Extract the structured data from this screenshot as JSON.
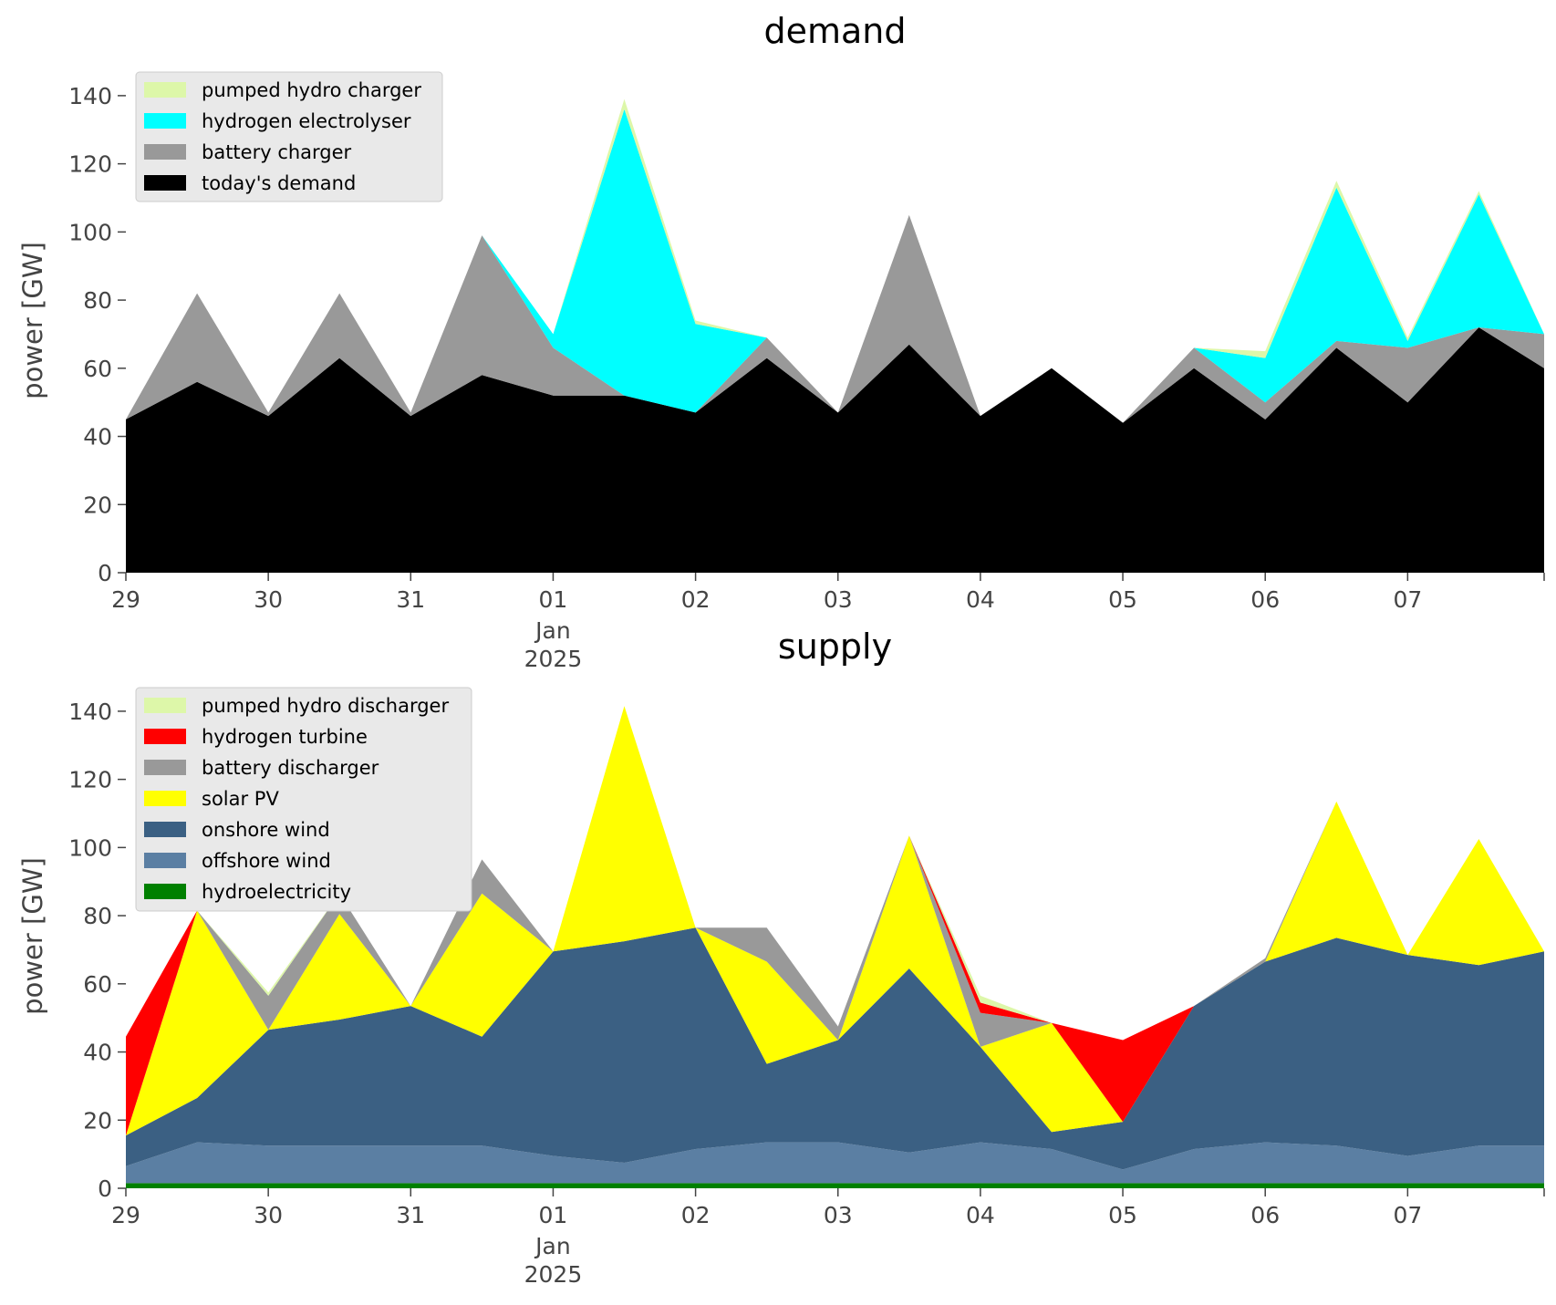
{
  "chart_data": [
    {
      "type": "area",
      "stacked": true,
      "title": "demand",
      "ylabel": "power [GW]",
      "xlabel": "",
      "ylim": [
        0,
        148
      ],
      "yticks": [
        0,
        20,
        40,
        60,
        80,
        100,
        120,
        140
      ],
      "xlim": [
        "2024-12-29",
        "2025-01-07T23:00"
      ],
      "xticks": [
        {
          "date": "2024-12-29",
          "label": "29"
        },
        {
          "date": "2024-12-30",
          "label": "30"
        },
        {
          "date": "2024-12-31",
          "label": "31"
        },
        {
          "date": "2025-01-01",
          "label": "01",
          "sub": [
            "Jan",
            "2025"
          ]
        },
        {
          "date": "2025-01-02",
          "label": "02"
        },
        {
          "date": "2025-01-03",
          "label": "03"
        },
        {
          "date": "2025-01-04",
          "label": "04"
        },
        {
          "date": "2025-01-05",
          "label": "05"
        },
        {
          "date": "2025-01-06",
          "label": "06"
        },
        {
          "date": "2025-01-07",
          "label": "07"
        }
      ],
      "legend_position": "upper-left",
      "x": [
        "2024-12-29",
        "2024-12-29T12:00",
        "2024-12-30",
        "2024-12-30T12:00",
        "2024-12-31",
        "2024-12-31T12:00",
        "2025-01-01",
        "2025-01-01T12:00",
        "2025-01-02",
        "2025-01-02T12:00",
        "2025-01-03",
        "2025-01-03T12:00",
        "2025-01-04",
        "2025-01-04T12:00",
        "2025-01-05",
        "2025-01-05T12:00",
        "2025-01-06",
        "2025-01-06T12:00",
        "2025-01-07",
        "2025-01-07T12:00",
        "2025-01-07T23:00"
      ],
      "series": [
        {
          "name": "today's demand",
          "color": "#000000",
          "values": [
            45,
            56,
            46,
            63,
            46,
            58,
            52,
            52,
            47,
            63,
            47,
            67,
            46,
            60,
            44,
            60,
            45,
            66,
            50,
            72,
            60
          ]
        },
        {
          "name": "battery charger",
          "color": "#999999",
          "values": [
            0,
            26,
            1,
            19,
            1,
            41,
            14,
            0,
            0,
            6,
            0,
            38,
            0,
            0,
            0,
            6,
            5,
            2,
            16,
            0,
            10
          ]
        },
        {
          "name": "hydrogen electrolyser",
          "color": "#00ffff",
          "values": [
            0,
            0,
            0,
            0,
            0,
            0,
            4,
            84,
            26,
            0,
            0,
            0,
            0,
            0,
            0,
            0,
            13,
            45,
            2,
            39,
            0
          ]
        },
        {
          "name": "pumped hydro charger",
          "color": "#ddf7a9",
          "values": [
            0,
            0,
            0,
            0,
            0,
            0,
            0,
            3,
            1,
            0,
            0,
            0,
            0,
            0,
            0,
            0,
            2,
            2,
            1,
            1,
            0
          ]
        }
      ]
    },
    {
      "type": "area",
      "stacked": true,
      "title": "supply",
      "ylabel": "power [GW]",
      "xlabel": "",
      "ylim": [
        0,
        148
      ],
      "yticks": [
        0,
        20,
        40,
        60,
        80,
        100,
        120,
        140
      ],
      "xlim": [
        "2024-12-29",
        "2025-01-07T23:00"
      ],
      "xticks": [
        {
          "date": "2024-12-29",
          "label": "29"
        },
        {
          "date": "2024-12-30",
          "label": "30"
        },
        {
          "date": "2024-12-31",
          "label": "31"
        },
        {
          "date": "2025-01-01",
          "label": "01",
          "sub": [
            "Jan",
            "2025"
          ]
        },
        {
          "date": "2025-01-02",
          "label": "02"
        },
        {
          "date": "2025-01-03",
          "label": "03"
        },
        {
          "date": "2025-01-04",
          "label": "04"
        },
        {
          "date": "2025-01-05",
          "label": "05"
        },
        {
          "date": "2025-01-06",
          "label": "06"
        },
        {
          "date": "2025-01-07",
          "label": "07"
        }
      ],
      "legend_position": "upper-left",
      "x": [
        "2024-12-29",
        "2024-12-29T12:00",
        "2024-12-30",
        "2024-12-30T12:00",
        "2024-12-31",
        "2024-12-31T12:00",
        "2025-01-01",
        "2025-01-01T12:00",
        "2025-01-02",
        "2025-01-02T12:00",
        "2025-01-03",
        "2025-01-03T12:00",
        "2025-01-04",
        "2025-01-04T12:00",
        "2025-01-05",
        "2025-01-05T12:00",
        "2025-01-06",
        "2025-01-06T12:00",
        "2025-01-07",
        "2025-01-07T12:00",
        "2025-01-07T23:00"
      ],
      "series": [
        {
          "name": "hydroelectricity",
          "color": "#008000",
          "values": [
            1.5,
            1.5,
            1.5,
            1.5,
            1.5,
            1.5,
            1.5,
            1.5,
            1.5,
            1.5,
            1.5,
            1.5,
            1.5,
            1.5,
            1.5,
            1.5,
            1.5,
            1.5,
            1.5,
            1.5,
            1.5
          ]
        },
        {
          "name": "offshore wind",
          "color": "#5b7fa3",
          "values": [
            5,
            12,
            11,
            11,
            11,
            11,
            8,
            6,
            10,
            12,
            12,
            9,
            12,
            10,
            4,
            10,
            12,
            11,
            8,
            11,
            11
          ]
        },
        {
          "name": "onshore wind",
          "color": "#3b6083",
          "values": [
            9,
            13,
            34,
            37,
            41,
            32,
            60,
            65,
            65,
            23,
            30,
            54,
            28,
            5,
            14,
            42,
            53,
            61,
            59,
            53,
            57
          ]
        },
        {
          "name": "solar PV",
          "color": "#ffff00",
          "values": [
            0,
            55,
            0,
            31,
            0,
            42,
            0,
            69,
            0,
            30,
            0,
            39,
            0,
            32,
            0,
            0,
            0,
            40,
            0,
            37,
            0
          ]
        },
        {
          "name": "battery discharger",
          "color": "#999999",
          "values": [
            0,
            0,
            10,
            6,
            0,
            10,
            0,
            0,
            0,
            10,
            4,
            0,
            10,
            0,
            0,
            0,
            1,
            0,
            0,
            0,
            0
          ]
        },
        {
          "name": "hydrogen turbine",
          "color": "#ff0000",
          "values": [
            29,
            0,
            0,
            0,
            0,
            0,
            0,
            0,
            0,
            0,
            0,
            0,
            3,
            0,
            24,
            0,
            0,
            0,
            0,
            0,
            0
          ]
        },
        {
          "name": "pumped hydro discharger",
          "color": "#ddf7a9",
          "values": [
            0,
            0,
            1,
            0,
            0,
            0,
            0,
            0,
            0,
            0,
            0,
            0,
            2,
            0,
            0,
            0,
            0,
            0,
            0,
            0,
            0
          ]
        }
      ]
    }
  ]
}
